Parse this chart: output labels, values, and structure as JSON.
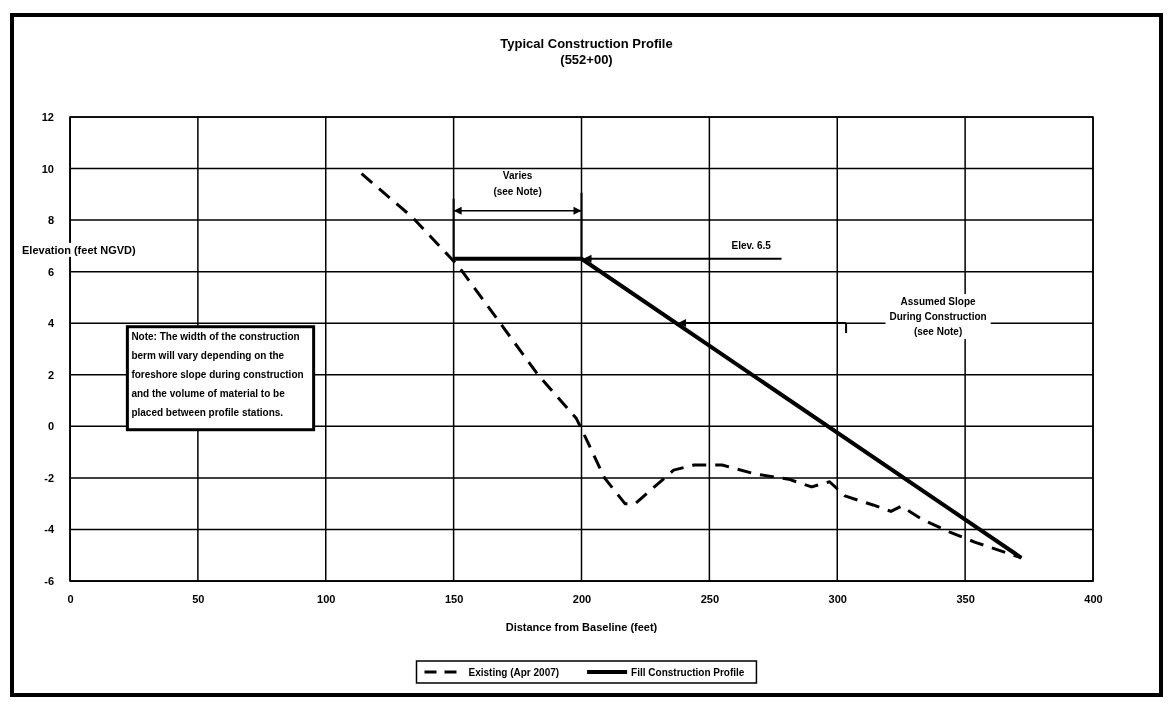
{
  "chart_data": {
    "type": "line",
    "title": "Typical Construction Profile\n(552+00)",
    "xlabel": "Distance from Baseline (feet)",
    "ylabel": "Elevation (feet NGVD)",
    "xlim": [
      0,
      400
    ],
    "xticks": [
      0,
      50,
      100,
      150,
      200,
      250,
      300,
      350,
      400
    ],
    "ylim": [
      -6,
      12
    ],
    "yticks": [
      -6,
      -4,
      -2,
      0,
      2,
      4,
      6,
      8,
      10,
      12
    ],
    "grid": true,
    "legend": "bottom",
    "marker": "none",
    "series": [
      {
        "name": "Existing (Apr 2007)",
        "color": "#000000",
        "line_style": "dashed",
        "x": [
          114,
          134,
          152,
          183,
          198,
          200,
          209,
          217,
          221,
          236,
          244,
          255,
          268,
          281,
          290,
          297,
          303,
          314,
          321,
          325,
          333,
          344,
          354,
          372
        ],
        "values": [
          9.8,
          8.1,
          6.2,
          2.0,
          0.3,
          -0.1,
          -2.0,
          -3.0,
          -3.0,
          -1.7,
          -1.5,
          -1.5,
          -1.85,
          -2.05,
          -2.35,
          -2.15,
          -2.7,
          -3.05,
          -3.3,
          -3.1,
          -3.6,
          -4.1,
          -4.5,
          -5.1
        ]
      },
      {
        "name": "Fill Construction Profile",
        "color": "#000000",
        "line_style": "solid",
        "x": [
          150,
          200,
          372
        ],
        "values": [
          6.5,
          6.5,
          -5.1
        ]
      }
    ],
    "annotations": [
      "Varies\n(see Note)",
      "Elev. 6.5",
      "Assumed Slope\nDuring Construction\n(see Note)",
      "Note: The width of the construction\nberm will vary depending on the\nforeshore slope during construction\nand the volume of material to be\nplaced between profile stations."
    ]
  }
}
